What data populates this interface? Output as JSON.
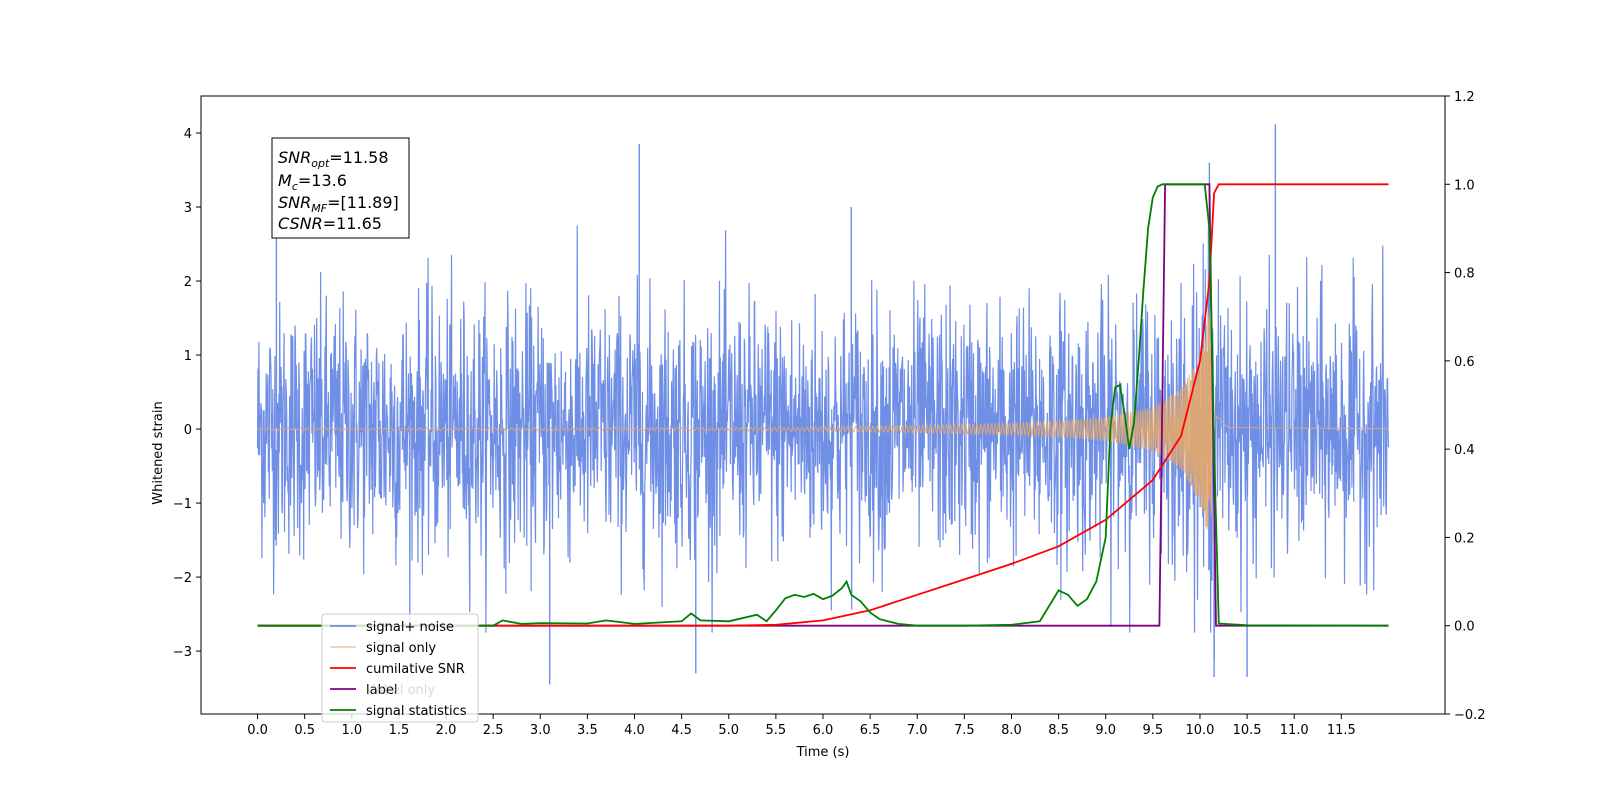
{
  "chart_data": {
    "type": "line",
    "title": "",
    "xlabel": "Time (s)",
    "ylabel": "Whitened strain",
    "xlim": [
      -0.6,
      12.6
    ],
    "ylim": [
      -3.85,
      4.5
    ],
    "y2lim": [
      -0.2,
      1.2
    ],
    "x_ticks": [
      "0.0",
      "0.5",
      "1.0",
      "1.5",
      "2.0",
      "2.5",
      "3.0",
      "3.5",
      "4.0",
      "4.5",
      "5.0",
      "5.5",
      "6.0",
      "6.5",
      "7.0",
      "7.5",
      "8.0",
      "8.5",
      "9.0",
      "9.5",
      "10.0",
      "10.5",
      "11.0",
      "11.5"
    ],
    "y_ticks": [
      "−3",
      "−2",
      "−1",
      "0",
      "1",
      "2",
      "3",
      "4"
    ],
    "y2_ticks": [
      "−0.2",
      "0.0",
      "0.2",
      "0.4",
      "0.6",
      "0.8",
      "1.0",
      "1.2"
    ],
    "grid": false,
    "legend_placement": "lower-left",
    "annotation": {
      "snr_opt": {
        "sym": "SNR",
        "sub": "opt",
        "value": "=11.58"
      },
      "mc": {
        "sym": "M",
        "sub": "c",
        "value": "=13.6"
      },
      "snr_mf": {
        "sym": "SNR",
        "sub": "MF",
        "value": "=[11.89]"
      },
      "csnr": {
        "sym": "CSNR",
        "sub": "",
        "value": "=11.65"
      }
    },
    "series": [
      {
        "name": "signal+ noise",
        "axis": "left",
        "color": "#6f8ee6",
        "description": "noisy whitened strain, roughly ±2.6 with spikes up to 4.1 and down to −3.5",
        "peaks": [
          [
            0.2,
            2.8
          ],
          [
            4.05,
            3.85
          ],
          [
            6.3,
            3.0
          ],
          [
            10.1,
            3.6
          ],
          [
            10.8,
            4.12
          ],
          [
            3.1,
            -3.45
          ],
          [
            4.65,
            -3.3
          ],
          [
            10.15,
            -3.35
          ],
          [
            10.5,
            -3.35
          ],
          [
            10.15,
            -3.1
          ]
        ]
      },
      {
        "name": "signal only",
        "axis": "left",
        "color": "#e6a96b",
        "description": "chirp, amplitude grows from ~0 to ~1.8 near 10.1 s then rings down",
        "amplitude": [
          [
            0.0,
            0.01
          ],
          [
            5.0,
            0.02
          ],
          [
            6.0,
            0.03
          ],
          [
            7.0,
            0.05
          ],
          [
            8.0,
            0.08
          ],
          [
            8.5,
            0.11
          ],
          [
            9.0,
            0.16
          ],
          [
            9.5,
            0.3
          ],
          [
            9.8,
            0.55
          ],
          [
            10.0,
            1.0
          ],
          [
            10.1,
            1.6
          ],
          [
            10.15,
            0.5
          ],
          [
            10.3,
            0.05
          ],
          [
            12.0,
            0.01
          ]
        ]
      },
      {
        "name": "cumilative SNR",
        "axis": "right",
        "color": "#ff0000",
        "x": [
          0.0,
          5.0,
          5.5,
          6.0,
          6.5,
          7.0,
          7.5,
          8.0,
          8.5,
          9.0,
          9.5,
          9.8,
          10.0,
          10.1,
          10.15,
          10.2,
          12.0
        ],
        "values": [
          0.0,
          0.0,
          0.002,
          0.012,
          0.035,
          0.07,
          0.105,
          0.14,
          0.18,
          0.24,
          0.33,
          0.43,
          0.6,
          0.78,
          0.98,
          1.0,
          1.0
        ]
      },
      {
        "name": "label",
        "axis": "right",
        "color": "#800080",
        "x": [
          0.0,
          9.57,
          9.63,
          10.1,
          10.17,
          12.0
        ],
        "values": [
          0.0,
          0.0,
          1.0,
          1.0,
          0.0,
          0.0
        ]
      },
      {
        "name": "label only",
        "axis": "right",
        "color": "#c0c0c0",
        "hidden": true
      },
      {
        "name": "signal statistics",
        "axis": "right",
        "color": "#008000",
        "x": [
          0.0,
          2.5,
          2.6,
          2.8,
          3.0,
          3.5,
          3.7,
          4.0,
          4.5,
          4.6,
          4.7,
          5.0,
          5.3,
          5.4,
          5.5,
          5.6,
          5.7,
          5.8,
          5.9,
          6.0,
          6.1,
          6.2,
          6.25,
          6.3,
          6.4,
          6.5,
          6.6,
          6.8,
          7.0,
          7.5,
          8.0,
          8.3,
          8.4,
          8.5,
          8.6,
          8.7,
          8.8,
          8.9,
          9.0,
          9.05,
          9.1,
          9.15,
          9.2,
          9.25,
          9.3,
          9.35,
          9.4,
          9.45,
          9.5,
          9.55,
          9.6,
          9.7,
          10.0,
          10.05,
          10.1,
          10.15,
          10.2,
          10.5,
          12.0
        ],
        "values": [
          0.0,
          0.0,
          0.012,
          0.004,
          0.006,
          0.005,
          0.012,
          0.004,
          0.01,
          0.028,
          0.012,
          0.01,
          0.025,
          0.01,
          0.035,
          0.062,
          0.07,
          0.065,
          0.072,
          0.06,
          0.068,
          0.085,
          0.1,
          0.07,
          0.055,
          0.03,
          0.015,
          0.004,
          0.0,
          0.0,
          0.002,
          0.01,
          0.045,
          0.08,
          0.07,
          0.045,
          0.06,
          0.1,
          0.2,
          0.45,
          0.54,
          0.545,
          0.48,
          0.4,
          0.46,
          0.6,
          0.76,
          0.9,
          0.97,
          0.995,
          1.0,
          1.0,
          1.0,
          1.0,
          0.9,
          0.4,
          0.005,
          0.001,
          0.0
        ]
      }
    ]
  }
}
